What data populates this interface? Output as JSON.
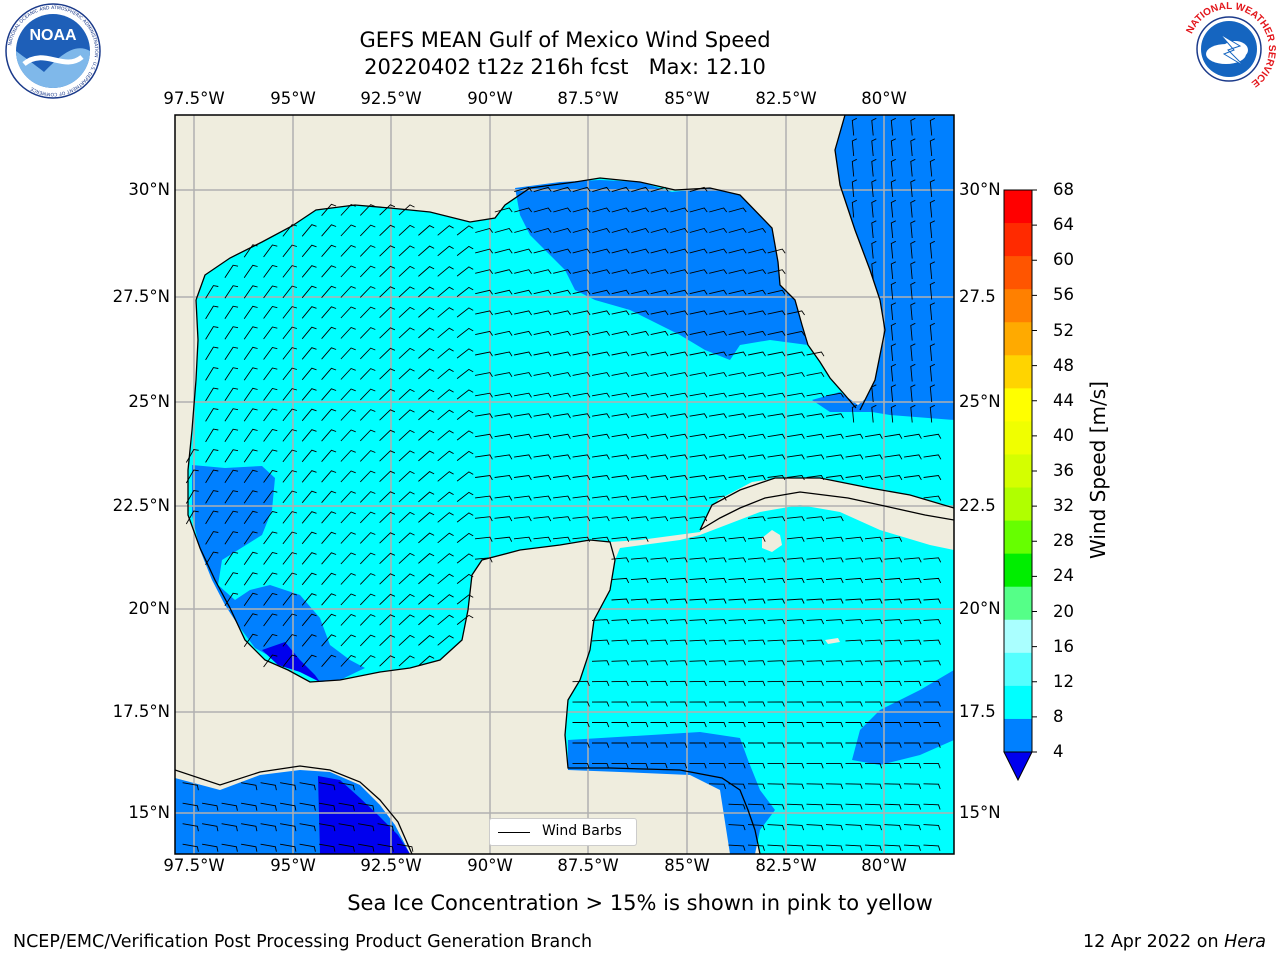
{
  "title": {
    "line1": "GEFS MEAN Gulf of Mexico Wind Speed",
    "line2": "20220402 t12z 216h fcst   Max: 12.10"
  },
  "lon_ticks": [
    "97.5°W",
    "95°W",
    "92.5°W",
    "90°W",
    "87.5°W",
    "85°W",
    "82.5°W",
    "80°W"
  ],
  "lat_ticks_left": [
    "30°N",
    "27.5°N",
    "25°N",
    "22.5°N",
    "20°N",
    "17.5°N",
    "15°N"
  ],
  "lat_ticks_right": [
    "30°N",
    "27.5",
    "25°N",
    "22.5",
    "20°N",
    "17.5",
    "15°N"
  ],
  "colorbar": {
    "label": "Wind Speed [m/s]",
    "ticks": [
      "68",
      "64",
      "60",
      "56",
      "52",
      "48",
      "44",
      "40",
      "36",
      "32",
      "28",
      "24",
      "20",
      "16",
      "12",
      "8",
      "4"
    ],
    "colors": [
      "#ff0000",
      "#ff2a00",
      "#ff5500",
      "#ff8000",
      "#ffaa00",
      "#ffd400",
      "#ffff00",
      "#f0ff00",
      "#d4ff00",
      "#b0ff00",
      "#66ff00",
      "#00ee00",
      "#55ff88",
      "#aaffff",
      "#55ffff",
      "#00ffff",
      "#0080ff"
    ],
    "under_color": "#0000ee"
  },
  "legend": {
    "label": "Wind Barbs"
  },
  "footer": {
    "note": "Sea Ice Concentration > 15% is shown in pink to yellow",
    "credit": "NCEP/EMC/Verification Post Processing Product Generation Branch",
    "date": "12 Apr 2022 on",
    "machine": "Hera"
  },
  "logos": {
    "noaa": {
      "text": "NOAA",
      "ring": "NATIONAL OCEANIC AND ATMOSPHERIC ADMINISTRATION · U.S. DEPARTMENT OF COMMERCE"
    },
    "nws": {
      "ring": "NATIONAL WEATHER SERVICE"
    }
  },
  "map_colors": {
    "land": "#efedde",
    "light_wind": "#00ffff",
    "moderate_wind": "#0080ff",
    "low_wind": "#0000ee",
    "grid": "#b0b0b0"
  }
}
